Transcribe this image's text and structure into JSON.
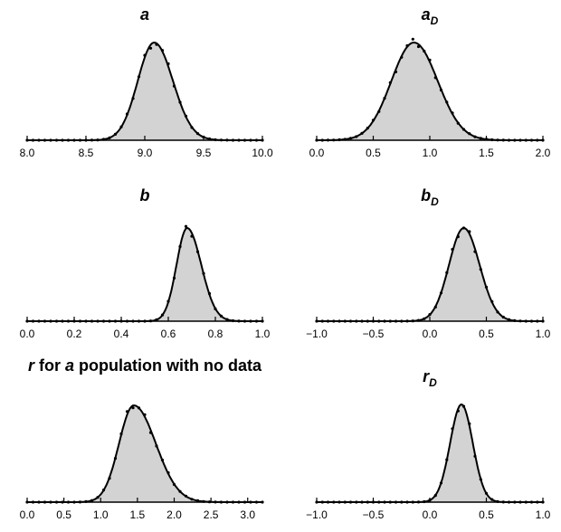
{
  "chart_data": [
    {
      "id": "a",
      "type": "area",
      "title": "a",
      "title_sub": "",
      "xlim": [
        8.0,
        10.0
      ],
      "xticks": [
        "8.0",
        "8.5",
        "9.0",
        "9.5",
        "10.0"
      ],
      "distribution": {
        "mean": 9.08,
        "sd_left": 0.14,
        "sd_right": 0.16,
        "peak": 1.0
      }
    },
    {
      "id": "aD",
      "type": "area",
      "title": "a",
      "title_sub": "D",
      "xlim": [
        0.0,
        2.0
      ],
      "xticks": [
        "0.0",
        "0.5",
        "1.0",
        "1.5",
        "2.0"
      ],
      "distribution": {
        "mean": 0.86,
        "sd_left": 0.2,
        "sd_right": 0.21,
        "peak": 1.0
      }
    },
    {
      "id": "b",
      "type": "area",
      "title": "b",
      "title_sub": "",
      "xlim": [
        0.0,
        1.0
      ],
      "xticks": [
        "0.0",
        "0.2",
        "0.4",
        "0.6",
        "0.8",
        "1.0"
      ],
      "distribution": {
        "mean": 0.68,
        "sd_left": 0.045,
        "sd_right": 0.06,
        "peak": 1.0
      }
    },
    {
      "id": "bD",
      "type": "area",
      "title": "b",
      "title_sub": "D",
      "xlim": [
        -1.0,
        1.0
      ],
      "xticks": [
        "−1.0",
        "−0.5",
        "0.0",
        "0.5",
        "1.0"
      ],
      "distribution": {
        "mean": 0.3,
        "sd_left": 0.13,
        "sd_right": 0.14,
        "peak": 1.0
      }
    },
    {
      "id": "r",
      "type": "area",
      "title": "r for a population with no data",
      "title_sub": "",
      "xlim": [
        0.0,
        3.2
      ],
      "xticks": [
        "0.0",
        "0.5",
        "1.0",
        "1.5",
        "2.0",
        "2.5",
        "3.0"
      ],
      "distribution": {
        "mean": 1.45,
        "sd_left": 0.2,
        "sd_right": 0.3,
        "peak": 1.0
      }
    },
    {
      "id": "rD",
      "type": "area",
      "title": "r",
      "title_sub": "D",
      "xlim": [
        -1.0,
        1.0
      ],
      "xticks": [
        "−1.0",
        "−0.5",
        "0.0",
        "0.5",
        "1.0"
      ],
      "distribution": {
        "mean": 0.28,
        "sd_left": 0.1,
        "sd_right": 0.1,
        "peak": 1.0
      }
    }
  ]
}
